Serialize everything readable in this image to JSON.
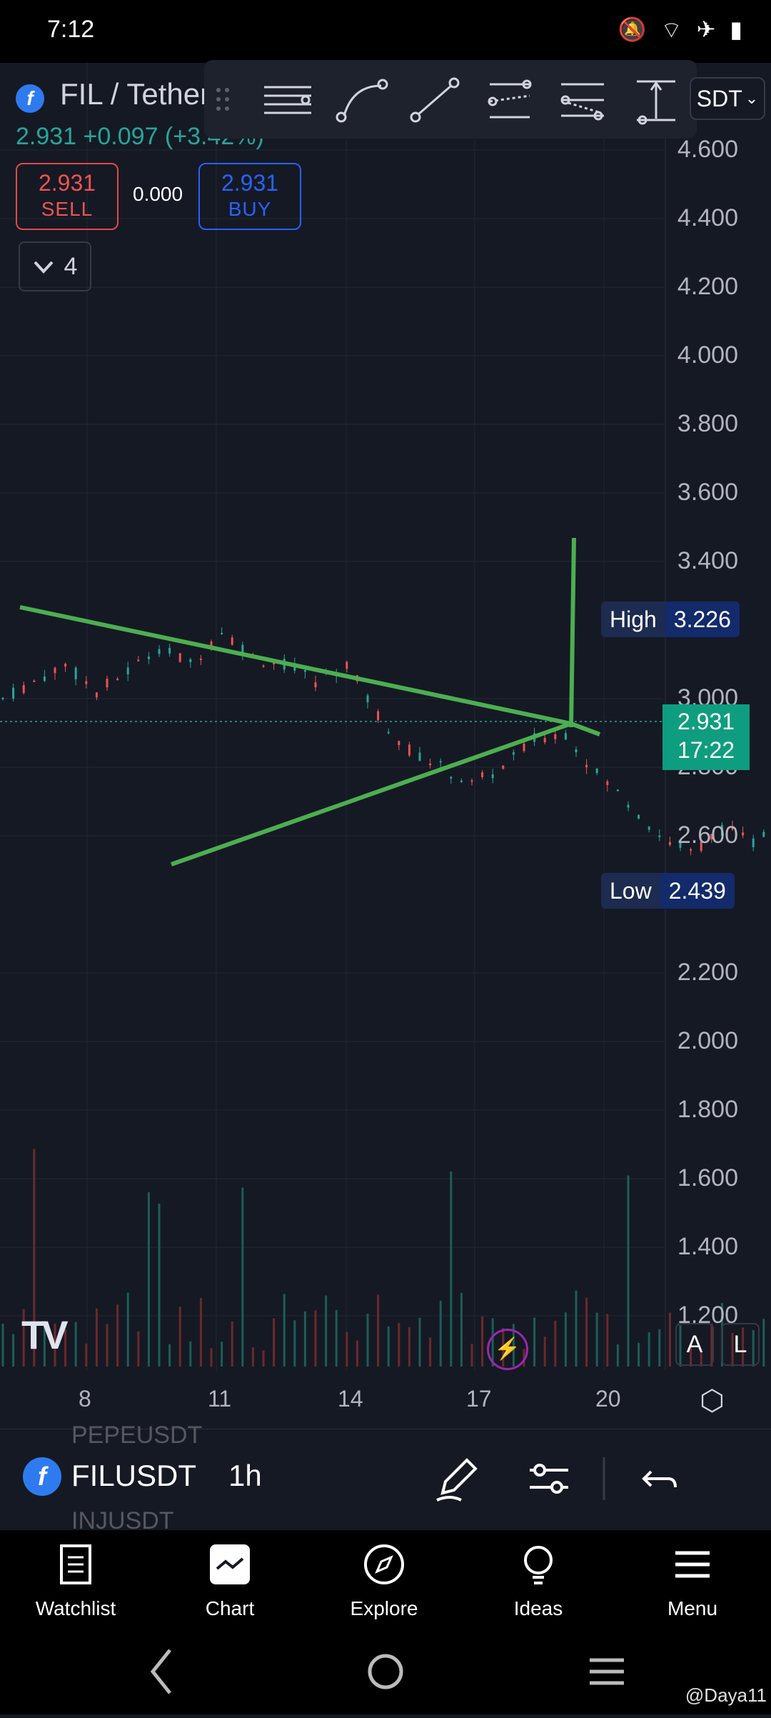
{
  "status_bar": {
    "time": "7:12",
    "icons": [
      "mute-icon",
      "wifi-icon",
      "airplane-icon",
      "battery-icon"
    ]
  },
  "symbol": {
    "title": "FIL / Tether",
    "price": "2.931",
    "change": "+0.097 (+3.42%)",
    "logo_glyph": "f",
    "quote_currency": "SDT"
  },
  "trade": {
    "sell_price": "2.931",
    "sell_label": "SELL",
    "spread": "0.000",
    "buy_price": "2.931",
    "buy_label": "BUY"
  },
  "indicators_count": "4",
  "draw_tools": [
    "horizontal-lines-tool",
    "curve-tool",
    "trend-line-tool",
    "parallel-channel-tool",
    "regression-channel-tool",
    "price-range-tool"
  ],
  "price_scale": [
    "4.600",
    "4.400",
    "4.200",
    "4.000",
    "3.800",
    "3.600",
    "3.400",
    "3.000",
    "2.800",
    "2.600",
    "2.200",
    "2.000",
    "1.800",
    "1.600",
    "1.400",
    "1.200"
  ],
  "date_scale": [
    "8",
    "11",
    "14",
    "17",
    "20"
  ],
  "high": {
    "label": "High",
    "value": "3.226"
  },
  "low": {
    "label": "Low",
    "value": "2.439"
  },
  "current": {
    "price": "2.931",
    "countdown": "17:22"
  },
  "overlay_buttons": {
    "auto": "A",
    "log": "L"
  },
  "toolbar": {
    "ghost_above": "PEPEUSDT",
    "ghost_below": "INJUSDT",
    "symbol": "FILUSDT",
    "interval": "1h"
  },
  "nav": [
    {
      "label": "Watchlist",
      "icon": "watchlist-icon"
    },
    {
      "label": "Chart",
      "icon": "chart-icon"
    },
    {
      "label": "Explore",
      "icon": "compass-icon"
    },
    {
      "label": "Ideas",
      "icon": "lightbulb-icon"
    },
    {
      "label": "Menu",
      "icon": "menu-icon"
    }
  ],
  "watermark": "@Daya11",
  "colors": {
    "up": "#26a69a",
    "down": "#ef5350",
    "drawing": "#4caf50",
    "background": "#151924"
  }
}
